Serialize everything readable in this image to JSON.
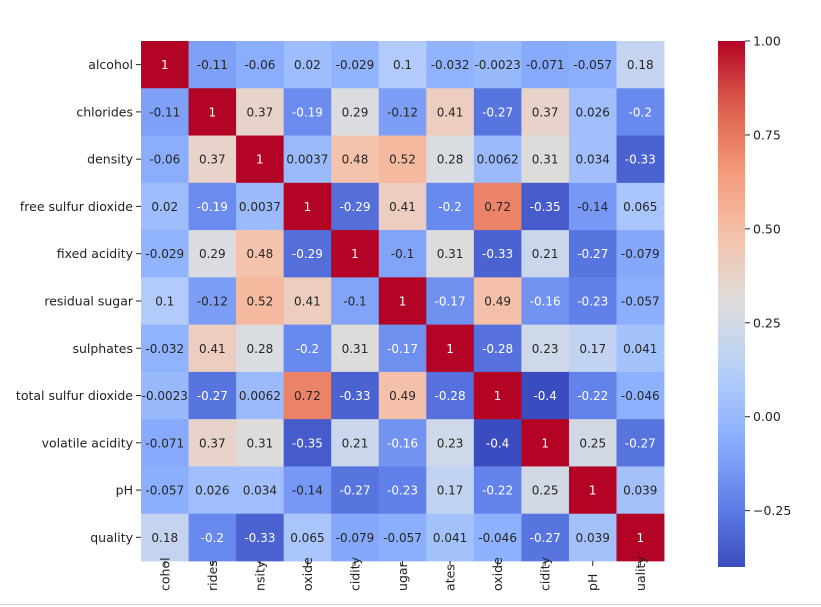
{
  "chart_data": {
    "type": "heatmap",
    "title": "",
    "xlabel": "",
    "ylabel": "",
    "labels": [
      "alcohol",
      "chlorides",
      "density",
      "free sulfur dioxide",
      "fixed acidity",
      "residual sugar",
      "sulphates",
      "total sulfur dioxide",
      "volatile acidity",
      "pH",
      "quality"
    ],
    "x_tick_labels_visible": [
      "cohol",
      "rides",
      "nsity",
      "oxide",
      "cidity",
      "ugar",
      "ates",
      "oxide",
      "cidity",
      "pH",
      "uality"
    ],
    "matrix": [
      [
        "1",
        "-0.11",
        "-0.06",
        "0.02",
        "-0.029",
        "0.1",
        "-0.032",
        "-0.0023",
        "-0.071",
        "-0.057",
        "0.18"
      ],
      [
        "-0.11",
        "1",
        "0.37",
        "-0.19",
        "0.29",
        "-0.12",
        "0.41",
        "-0.27",
        "0.37",
        "0.026",
        "-0.2"
      ],
      [
        "-0.06",
        "0.37",
        "1",
        "0.0037",
        "0.48",
        "0.52",
        "0.28",
        "0.0062",
        "0.31",
        "0.034",
        "-0.33"
      ],
      [
        "0.02",
        "-0.19",
        "0.0037",
        "1",
        "-0.29",
        "0.41",
        "-0.2",
        "0.72",
        "-0.35",
        "-0.14",
        "0.065"
      ],
      [
        "-0.029",
        "0.29",
        "0.48",
        "-0.29",
        "1",
        "-0.1",
        "0.31",
        "-0.33",
        "0.21",
        "-0.27",
        "-0.079"
      ],
      [
        "0.1",
        "-0.12",
        "0.52",
        "0.41",
        "-0.1",
        "1",
        "-0.17",
        "0.49",
        "-0.16",
        "-0.23",
        "-0.057"
      ],
      [
        "-0.032",
        "0.41",
        "0.28",
        "-0.2",
        "0.31",
        "-0.17",
        "1",
        "-0.28",
        "0.23",
        "0.17",
        "0.041"
      ],
      [
        "-0.0023",
        "-0.27",
        "0.0062",
        "0.72",
        "-0.33",
        "0.49",
        "-0.28",
        "1",
        "-0.4",
        "-0.22",
        "-0.046"
      ],
      [
        "-0.071",
        "0.37",
        "0.31",
        "-0.35",
        "0.21",
        "-0.16",
        "0.23",
        "-0.4",
        "1",
        "0.25",
        "-0.27"
      ],
      [
        "-0.057",
        "0.026",
        "0.034",
        "-0.14",
        "-0.27",
        "-0.23",
        "0.17",
        "-0.22",
        "0.25",
        "1",
        "0.039"
      ],
      [
        "0.18",
        "-0.2",
        "-0.33",
        "0.065",
        "-0.079",
        "-0.057",
        "0.041",
        "-0.046",
        "-0.27",
        "0.039",
        "1"
      ]
    ],
    "colormap": "coolwarm",
    "vmin": -0.4,
    "vmax": 1.0,
    "colorbar_ticks": [
      "1.00",
      "0.75",
      "0.50",
      "0.25",
      "0.00",
      "−0.25"
    ],
    "colorbar_tick_values": [
      1.0,
      0.75,
      0.5,
      0.25,
      0.0,
      -0.25
    ],
    "grid": false,
    "legend": "colorbar-right"
  }
}
